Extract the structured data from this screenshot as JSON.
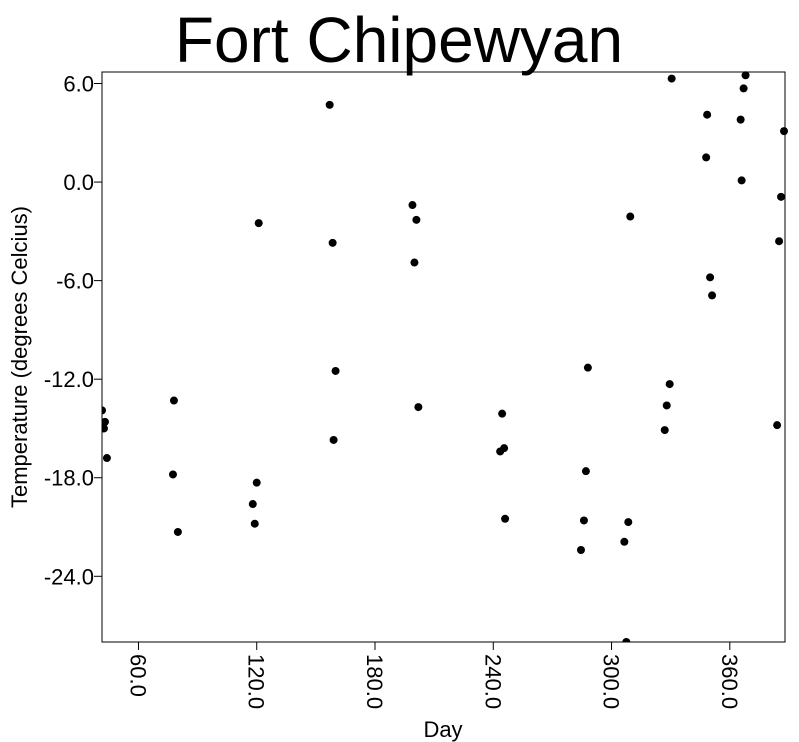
{
  "chart_data": {
    "type": "scatter",
    "title": "Fort Chipewyan",
    "xlabel": "Day",
    "ylabel": "Temperature (degrees Celcius)",
    "xlim": [
      41.5,
      388
    ],
    "ylim": [
      -28.0,
      6.7
    ],
    "xticks": [
      60,
      120,
      180,
      240,
      300,
      360
    ],
    "yticks": [
      6,
      0,
      -6,
      -12,
      -18,
      -24
    ],
    "xtick_labels": [
      "60.0",
      "120.0",
      "180.0",
      "240.0",
      "300.0",
      "360.0"
    ],
    "ytick_labels": [
      "6.0",
      "0.0",
      "-6.0",
      "-12.0",
      "-18.0",
      "-24.0"
    ],
    "grid": false,
    "marker_color": "#000000",
    "points": [
      {
        "x": 41.5,
        "y": -13.9
      },
      {
        "x": 42.5,
        "y": -15.0
      },
      {
        "x": 43.0,
        "y": -14.6
      },
      {
        "x": 44.0,
        "y": -16.8
      },
      {
        "x": 78.0,
        "y": -13.3
      },
      {
        "x": 77.5,
        "y": -17.8
      },
      {
        "x": 80.0,
        "y": -21.3
      },
      {
        "x": 118.0,
        "y": -19.6
      },
      {
        "x": 119.0,
        "y": -20.8
      },
      {
        "x": 120.0,
        "y": -18.3
      },
      {
        "x": 121.0,
        "y": -2.5
      },
      {
        "x": 157.0,
        "y": 4.7
      },
      {
        "x": 158.5,
        "y": -3.7
      },
      {
        "x": 160.0,
        "y": -11.5
      },
      {
        "x": 159.0,
        "y": -15.7
      },
      {
        "x": 199.0,
        "y": -1.4
      },
      {
        "x": 200.0,
        "y": -4.9
      },
      {
        "x": 201.0,
        "y": -2.3
      },
      {
        "x": 202.0,
        "y": -13.7
      },
      {
        "x": 244.5,
        "y": -14.1
      },
      {
        "x": 243.5,
        "y": -16.4
      },
      {
        "x": 245.5,
        "y": -16.2
      },
      {
        "x": 246.0,
        "y": -20.5
      },
      {
        "x": 284.5,
        "y": -22.4
      },
      {
        "x": 286.0,
        "y": -20.6
      },
      {
        "x": 287.0,
        "y": -17.6
      },
      {
        "x": 288.0,
        "y": -11.3
      },
      {
        "x": 306.5,
        "y": -21.9
      },
      {
        "x": 307.5,
        "y": -28.0
      },
      {
        "x": 308.5,
        "y": -20.7
      },
      {
        "x": 309.5,
        "y": -2.1
      },
      {
        "x": 327.0,
        "y": -15.1
      },
      {
        "x": 328.0,
        "y": -13.6
      },
      {
        "x": 329.5,
        "y": -12.3
      },
      {
        "x": 330.5,
        "y": 6.3
      },
      {
        "x": 348.0,
        "y": 1.5
      },
      {
        "x": 348.5,
        "y": 4.1
      },
      {
        "x": 350.0,
        "y": -5.8
      },
      {
        "x": 351.0,
        "y": -6.9
      },
      {
        "x": 365.5,
        "y": 3.8
      },
      {
        "x": 366.0,
        "y": 0.1
      },
      {
        "x": 367.0,
        "y": 5.7
      },
      {
        "x": 368.0,
        "y": 6.5
      },
      {
        "x": 384.0,
        "y": -14.8
      },
      {
        "x": 385.0,
        "y": -3.6
      },
      {
        "x": 386.0,
        "y": -0.9
      },
      {
        "x": 387.5,
        "y": 3.1
      }
    ]
  }
}
